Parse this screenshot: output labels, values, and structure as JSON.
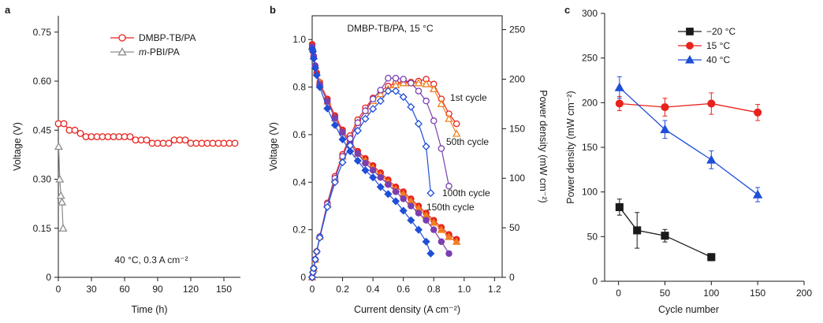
{
  "chart_data": [
    {
      "panel": "a",
      "type": "line",
      "xlabel": "Time (h)",
      "ylabel": "Voltage (V)",
      "xlim": [
        0,
        165
      ],
      "ylim": [
        0,
        0.8
      ],
      "xticks": [
        0,
        30,
        60,
        90,
        120,
        150
      ],
      "yticks": [
        0,
        0.15,
        0.3,
        0.45,
        0.6,
        0.75
      ],
      "ytick_labels": [
        "0",
        "0.15",
        "0.30",
        "0.45",
        "0.60",
        "0.75"
      ],
      "annotation": "40 °C, 0.3 A cm⁻²",
      "legend_position": "top-right",
      "series": [
        {
          "name": "DMBP-TB/PA",
          "color": "#e8231d",
          "marker": "circle",
          "x": [
            0,
            5,
            10,
            15,
            20,
            25,
            30,
            35,
            40,
            45,
            50,
            55,
            60,
            65,
            70,
            75,
            80,
            85,
            90,
            95,
            100,
            105,
            110,
            115,
            120,
            125,
            130,
            135,
            140,
            145,
            150,
            155,
            160
          ],
          "y": [
            0.47,
            0.47,
            0.45,
            0.45,
            0.44,
            0.43,
            0.43,
            0.43,
            0.43,
            0.43,
            0.43,
            0.43,
            0.43,
            0.43,
            0.42,
            0.42,
            0.42,
            0.41,
            0.41,
            0.41,
            0.41,
            0.42,
            0.42,
            0.42,
            0.41,
            0.41,
            0.41,
            0.41,
            0.41,
            0.41,
            0.41,
            0.41,
            0.41
          ]
        },
        {
          "name": "m-PBI/PA",
          "legend_italic_prefix": "m",
          "legend_suffix": "-PBI/PA",
          "color": "#8c8c8c",
          "marker": "triangle",
          "x": [
            0.3,
            1.3,
            2.3,
            3.3,
            4.3
          ],
          "y": [
            0.4,
            0.3,
            0.25,
            0.23,
            0.15
          ]
        }
      ]
    },
    {
      "panel": "b",
      "type": "line",
      "title": "DMBP-TB/PA, 15 °C",
      "xlabel": "Current density (A cm⁻²)",
      "ylabel": "Voltage (V)",
      "y2label": "Power density (mW cm⁻²)",
      "xlim": [
        0,
        1.25
      ],
      "ylim": [
        0,
        1.1
      ],
      "y2lim": [
        0,
        264
      ],
      "xticks": [
        0,
        0.2,
        0.4,
        0.6,
        0.8,
        1.0,
        1.2
      ],
      "xtick_labels": [
        "0",
        "0.2",
        "0.4",
        "0.6",
        "0.8",
        "1.0",
        "1.2"
      ],
      "yticks": [
        0,
        0.2,
        0.4,
        0.6,
        0.8,
        1.0
      ],
      "ytick_labels": [
        "0",
        "0.2",
        "0.4",
        "0.6",
        "0.8",
        "1.0"
      ],
      "y2ticks": [
        0,
        50,
        100,
        150,
        200,
        250
      ],
      "series_labels": [
        "1st cycle",
        "50th cycle",
        "100th cycle",
        "150th cycle"
      ],
      "series": [
        {
          "name": "1st cycle",
          "color": "#e8231d",
          "marker": "circle",
          "polarization": {
            "x": [
              0,
              0.005,
              0.01,
              0.02,
              0.03,
              0.05,
              0.1,
              0.15,
              0.2,
              0.25,
              0.3,
              0.35,
              0.4,
              0.45,
              0.5,
              0.55,
              0.6,
              0.65,
              0.7,
              0.75,
              0.8,
              0.85,
              0.9,
              0.95
            ],
            "y": [
              0.98,
              0.95,
              0.93,
              0.89,
              0.86,
              0.82,
              0.75,
              0.68,
              0.62,
              0.57,
              0.53,
              0.5,
              0.47,
              0.44,
              0.41,
              0.38,
              0.36,
              0.33,
              0.3,
              0.27,
              0.24,
              0.21,
              0.18,
              0.16
            ]
          },
          "power": {
            "x": [
              0,
              0.005,
              0.01,
              0.02,
              0.03,
              0.05,
              0.1,
              0.15,
              0.2,
              0.25,
              0.3,
              0.35,
              0.4,
              0.45,
              0.5,
              0.55,
              0.6,
              0.65,
              0.7,
              0.75,
              0.8,
              0.85,
              0.9,
              0.95
            ],
            "y": [
              0,
              5,
              9,
              18,
              26,
              41,
              75,
              102,
              124,
              143,
              159,
              171,
              181,
              188,
              193,
              196,
              197,
              197,
              198,
              200,
              195,
              180,
              165,
              155
            ]
          }
        },
        {
          "name": "50th cycle",
          "color": "#f08020",
          "marker": "triangle",
          "polarization": {
            "x": [
              0,
              0.01,
              0.02,
              0.05,
              0.1,
              0.15,
              0.2,
              0.25,
              0.3,
              0.35,
              0.4,
              0.45,
              0.5,
              0.55,
              0.6,
              0.65,
              0.7,
              0.75,
              0.8,
              0.85,
              0.9,
              0.95
            ],
            "y": [
              0.97,
              0.93,
              0.89,
              0.82,
              0.74,
              0.67,
              0.61,
              0.56,
              0.52,
              0.49,
              0.46,
              0.43,
              0.4,
              0.37,
              0.35,
              0.32,
              0.29,
              0.26,
              0.23,
              0.2,
              0.17,
              0.15
            ]
          },
          "power": {
            "x": [
              0,
              0.01,
              0.02,
              0.05,
              0.1,
              0.15,
              0.2,
              0.25,
              0.3,
              0.35,
              0.4,
              0.45,
              0.5,
              0.55,
              0.6,
              0.65,
              0.7,
              0.75,
              0.8,
              0.85,
              0.9,
              0.95
            ],
            "y": [
              0,
              9,
              18,
              41,
              74,
              100,
              122,
              140,
              156,
              168,
              178,
              185,
              190,
              194,
              196,
              196,
              196,
              195,
              190,
              175,
              160,
              145
            ]
          }
        },
        {
          "name": "100th cycle",
          "color": "#7b3fb0",
          "marker": "circle",
          "polarization": {
            "x": [
              0,
              0.01,
              0.02,
              0.05,
              0.1,
              0.15,
              0.2,
              0.25,
              0.3,
              0.35,
              0.4,
              0.45,
              0.5,
              0.55,
              0.6,
              0.65,
              0.7,
              0.75,
              0.8,
              0.85,
              0.9
            ],
            "y": [
              0.97,
              0.93,
              0.89,
              0.81,
              0.74,
              0.67,
              0.61,
              0.56,
              0.52,
              0.48,
              0.45,
              0.42,
              0.39,
              0.36,
              0.33,
              0.3,
              0.27,
              0.24,
              0.2,
              0.15,
              0.1
            ]
          },
          "power": {
            "x": [
              0,
              0.01,
              0.02,
              0.05,
              0.1,
              0.15,
              0.2,
              0.25,
              0.3,
              0.35,
              0.4,
              0.45,
              0.5,
              0.55,
              0.6,
              0.65,
              0.7,
              0.75,
              0.8,
              0.85,
              0.9
            ],
            "y": [
              0,
              9,
              18,
              41,
              74,
              100,
              122,
              140,
              156,
              168,
              180,
              189,
              201,
              201,
              200,
              196,
              188,
              178,
              158,
              130,
              92
            ]
          }
        },
        {
          "name": "150th cycle",
          "color": "#1f4fd8",
          "marker": "diamond",
          "polarization": {
            "x": [
              0,
              0.005,
              0.01,
              0.02,
              0.03,
              0.05,
              0.1,
              0.15,
              0.2,
              0.25,
              0.3,
              0.35,
              0.4,
              0.45,
              0.5,
              0.55,
              0.6,
              0.65,
              0.7,
              0.75,
              0.78
            ],
            "y": [
              0.96,
              0.95,
              0.92,
              0.88,
              0.85,
              0.8,
              0.71,
              0.64,
              0.58,
              0.53,
              0.49,
              0.45,
              0.42,
              0.38,
              0.35,
              0.32,
              0.28,
              0.24,
              0.2,
              0.15,
              0.1
            ]
          },
          "power": {
            "x": [
              0,
              0.005,
              0.01,
              0.02,
              0.03,
              0.05,
              0.1,
              0.15,
              0.2,
              0.25,
              0.3,
              0.35,
              0.4,
              0.45,
              0.5,
              0.55,
              0.6,
              0.65,
              0.7,
              0.75,
              0.78
            ],
            "y": [
              0,
              5,
              9,
              18,
              26,
              40,
              71,
              96,
              116,
              133,
              148,
              160,
              170,
              178,
              188,
              188,
              182,
              172,
              155,
              132,
              85
            ]
          }
        }
      ]
    },
    {
      "panel": "c",
      "type": "line",
      "xlabel": "Cycle number",
      "ylabel": "Power density (mW cm⁻²)",
      "xlim": [
        -15,
        200
      ],
      "ylim": [
        0,
        300
      ],
      "xticks": [
        0,
        50,
        100,
        150,
        200
      ],
      "yticks": [
        0,
        50,
        100,
        150,
        200,
        250,
        300
      ],
      "legend_position": "top-right",
      "series": [
        {
          "name": "−20 °C",
          "color": "#1a1a1a",
          "marker": "square",
          "x": [
            1,
            20,
            50,
            100
          ],
          "y": [
            83,
            57,
            51,
            27
          ],
          "err": [
            9,
            20,
            7,
            4
          ]
        },
        {
          "name": "15 °C",
          "color": "#e8231d",
          "marker": "circle",
          "x": [
            1,
            50,
            100,
            150
          ],
          "y": [
            199,
            195,
            199,
            189
          ],
          "err": [
            8,
            10,
            12,
            9
          ]
        },
        {
          "name": "40 °C",
          "color": "#1f4fd8",
          "marker": "triangle",
          "x": [
            1,
            50,
            100,
            150
          ],
          "y": [
            217,
            170,
            136,
            97
          ],
          "err": [
            12,
            10,
            10,
            8
          ]
        }
      ]
    }
  ]
}
